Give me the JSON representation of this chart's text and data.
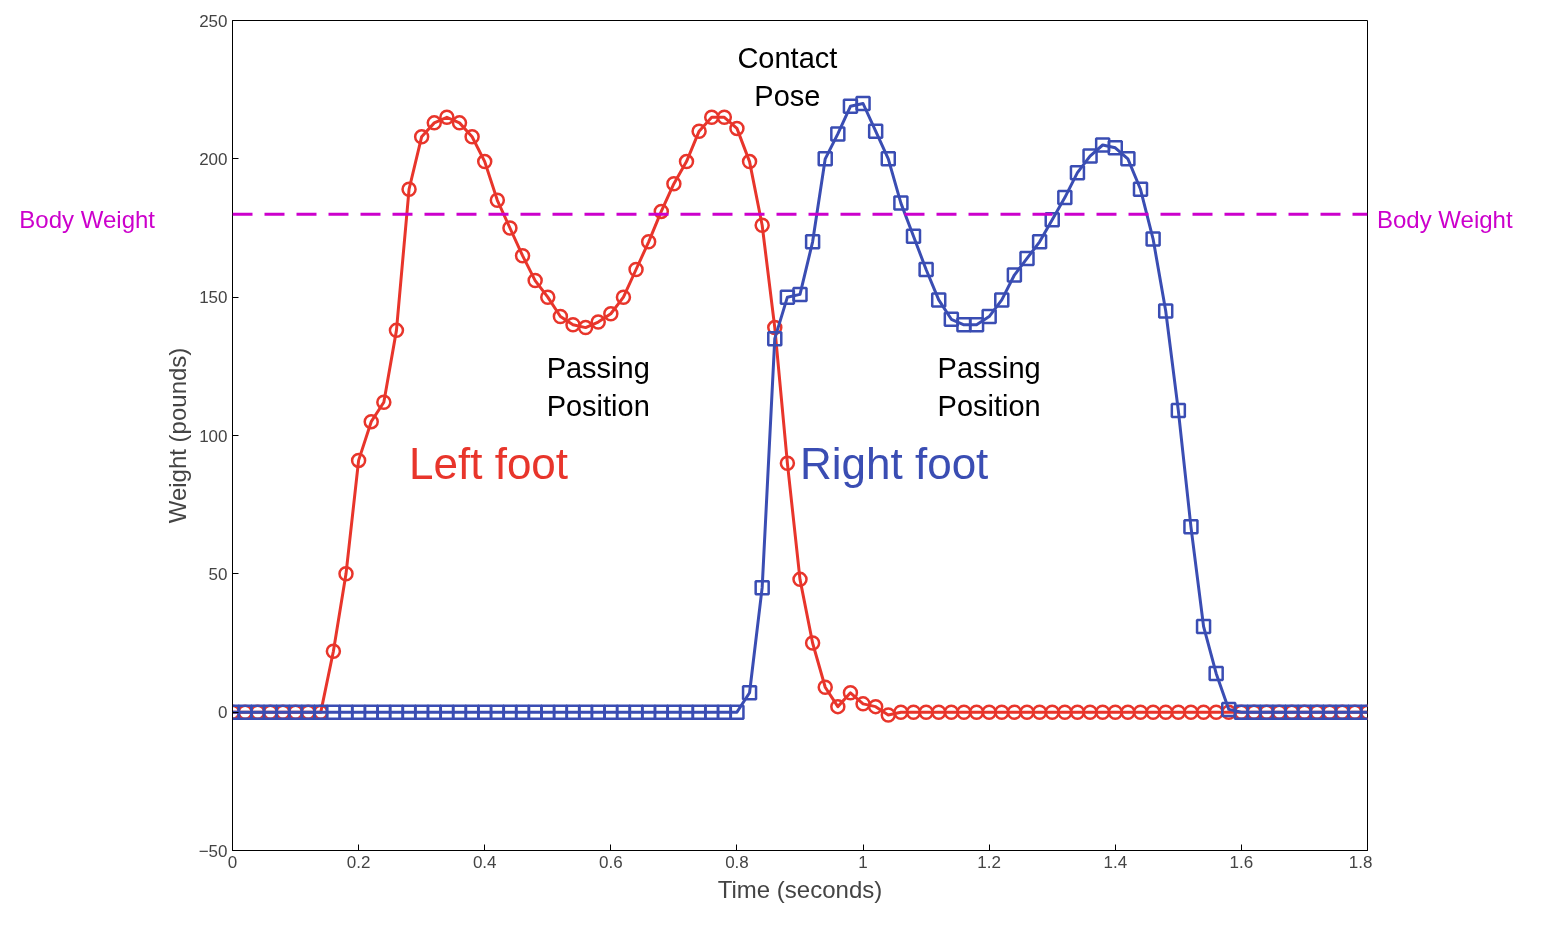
{
  "chart_data": {
    "type": "line",
    "xlabel": "Time (seconds)",
    "ylabel": "Weight (pounds)",
    "xlim": [
      0,
      1.8
    ],
    "ylim": [
      -50,
      250
    ],
    "xticks": [
      0,
      0.2,
      0.4,
      0.6,
      0.8,
      1,
      1.2,
      1.4,
      1.6,
      1.8
    ],
    "yticks": [
      {
        "value": -50,
        "label": "−50"
      },
      0,
      50,
      100,
      150,
      200,
      250
    ],
    "grid": false,
    "line_style": "solid",
    "series": [
      {
        "name": "Left foot",
        "color": "#e8352b",
        "marker": "circle",
        "x": [
          0,
          0.02,
          0.04,
          0.06,
          0.08,
          0.1,
          0.12,
          0.14,
          0.16,
          0.18,
          0.2,
          0.22,
          0.24,
          0.26,
          0.28,
          0.3,
          0.32,
          0.34,
          0.36,
          0.38,
          0.4,
          0.42,
          0.44,
          0.46,
          0.48,
          0.5,
          0.52,
          0.54,
          0.56,
          0.58,
          0.6,
          0.62,
          0.64,
          0.66,
          0.68,
          0.7,
          0.72,
          0.74,
          0.76,
          0.78,
          0.8,
          0.82,
          0.84,
          0.86,
          0.88,
          0.9,
          0.92,
          0.94,
          0.96,
          0.98,
          1,
          1.02,
          1.04,
          1.06,
          1.08,
          1.1,
          1.12,
          1.14,
          1.16,
          1.18,
          1.2,
          1.22,
          1.24,
          1.26,
          1.28,
          1.3,
          1.32,
          1.34,
          1.36,
          1.38,
          1.4,
          1.42,
          1.44,
          1.46,
          1.48,
          1.5,
          1.52,
          1.54,
          1.56,
          1.58,
          1.6,
          1.62,
          1.64,
          1.66,
          1.68,
          1.7,
          1.72,
          1.74,
          1.76,
          1.78,
          1.8
        ],
        "values": [
          0,
          0,
          0,
          0,
          0,
          0,
          0,
          0,
          22,
          50,
          91,
          105,
          112,
          138,
          189,
          208,
          213,
          215,
          213,
          208,
          199,
          185,
          175,
          165,
          156,
          150,
          143,
          140,
          139,
          141,
          144,
          150,
          160,
          170,
          181,
          191,
          199,
          210,
          215,
          215,
          211,
          199,
          176,
          139,
          90,
          48,
          25,
          9,
          2,
          7,
          3,
          2,
          -1,
          0,
          0,
          0,
          0,
          0,
          0,
          0,
          0,
          0,
          0,
          0,
          0,
          0,
          0,
          0,
          0,
          0,
          0,
          0,
          0,
          0,
          0,
          0,
          0,
          0,
          0,
          0,
          0,
          0,
          0,
          0,
          0,
          0,
          0,
          0,
          0,
          0,
          0
        ]
      },
      {
        "name": "Right foot",
        "color": "#3a4db3",
        "marker": "square",
        "x": [
          0,
          0.02,
          0.04,
          0.06,
          0.08,
          0.1,
          0.12,
          0.14,
          0.16,
          0.18,
          0.2,
          0.22,
          0.24,
          0.26,
          0.28,
          0.3,
          0.32,
          0.34,
          0.36,
          0.38,
          0.4,
          0.42,
          0.44,
          0.46,
          0.48,
          0.5,
          0.52,
          0.54,
          0.56,
          0.58,
          0.6,
          0.62,
          0.64,
          0.66,
          0.68,
          0.7,
          0.72,
          0.74,
          0.76,
          0.78,
          0.8,
          0.82,
          0.84,
          0.86,
          0.88,
          0.9,
          0.92,
          0.94,
          0.96,
          0.98,
          1,
          1.02,
          1.04,
          1.06,
          1.08,
          1.1,
          1.12,
          1.14,
          1.16,
          1.18,
          1.2,
          1.22,
          1.24,
          1.26,
          1.28,
          1.3,
          1.32,
          1.34,
          1.36,
          1.38,
          1.4,
          1.42,
          1.44,
          1.46,
          1.48,
          1.5,
          1.52,
          1.54,
          1.56,
          1.58,
          1.6,
          1.62,
          1.64,
          1.66,
          1.68,
          1.7,
          1.72,
          1.74,
          1.76,
          1.78,
          1.8
        ],
        "values": [
          0,
          0,
          0,
          0,
          0,
          0,
          0,
          0,
          0,
          0,
          0,
          0,
          0,
          0,
          0,
          0,
          0,
          0,
          0,
          0,
          0,
          0,
          0,
          0,
          0,
          0,
          0,
          0,
          0,
          0,
          0,
          0,
          0,
          0,
          0,
          0,
          0,
          0,
          0,
          0,
          0,
          7,
          45,
          135,
          150,
          151,
          170,
          200,
          209,
          219,
          220,
          210,
          200,
          184,
          172,
          160,
          149,
          142,
          140,
          140,
          143,
          149,
          158,
          164,
          170,
          178,
          186,
          195,
          201,
          205,
          204,
          200,
          189,
          171,
          145,
          109,
          67,
          31,
          14,
          1,
          0,
          0,
          0,
          0,
          0,
          0,
          0,
          0,
          0,
          0,
          0
        ]
      }
    ],
    "ref_lines": [
      {
        "axis": "y",
        "value": 180,
        "label": "Body Weight",
        "color": "#cc00cc",
        "line_style": "dashed"
      }
    ],
    "annotations": [
      "Contact Pose",
      "Passing Position",
      "Passing Position"
    ]
  }
}
